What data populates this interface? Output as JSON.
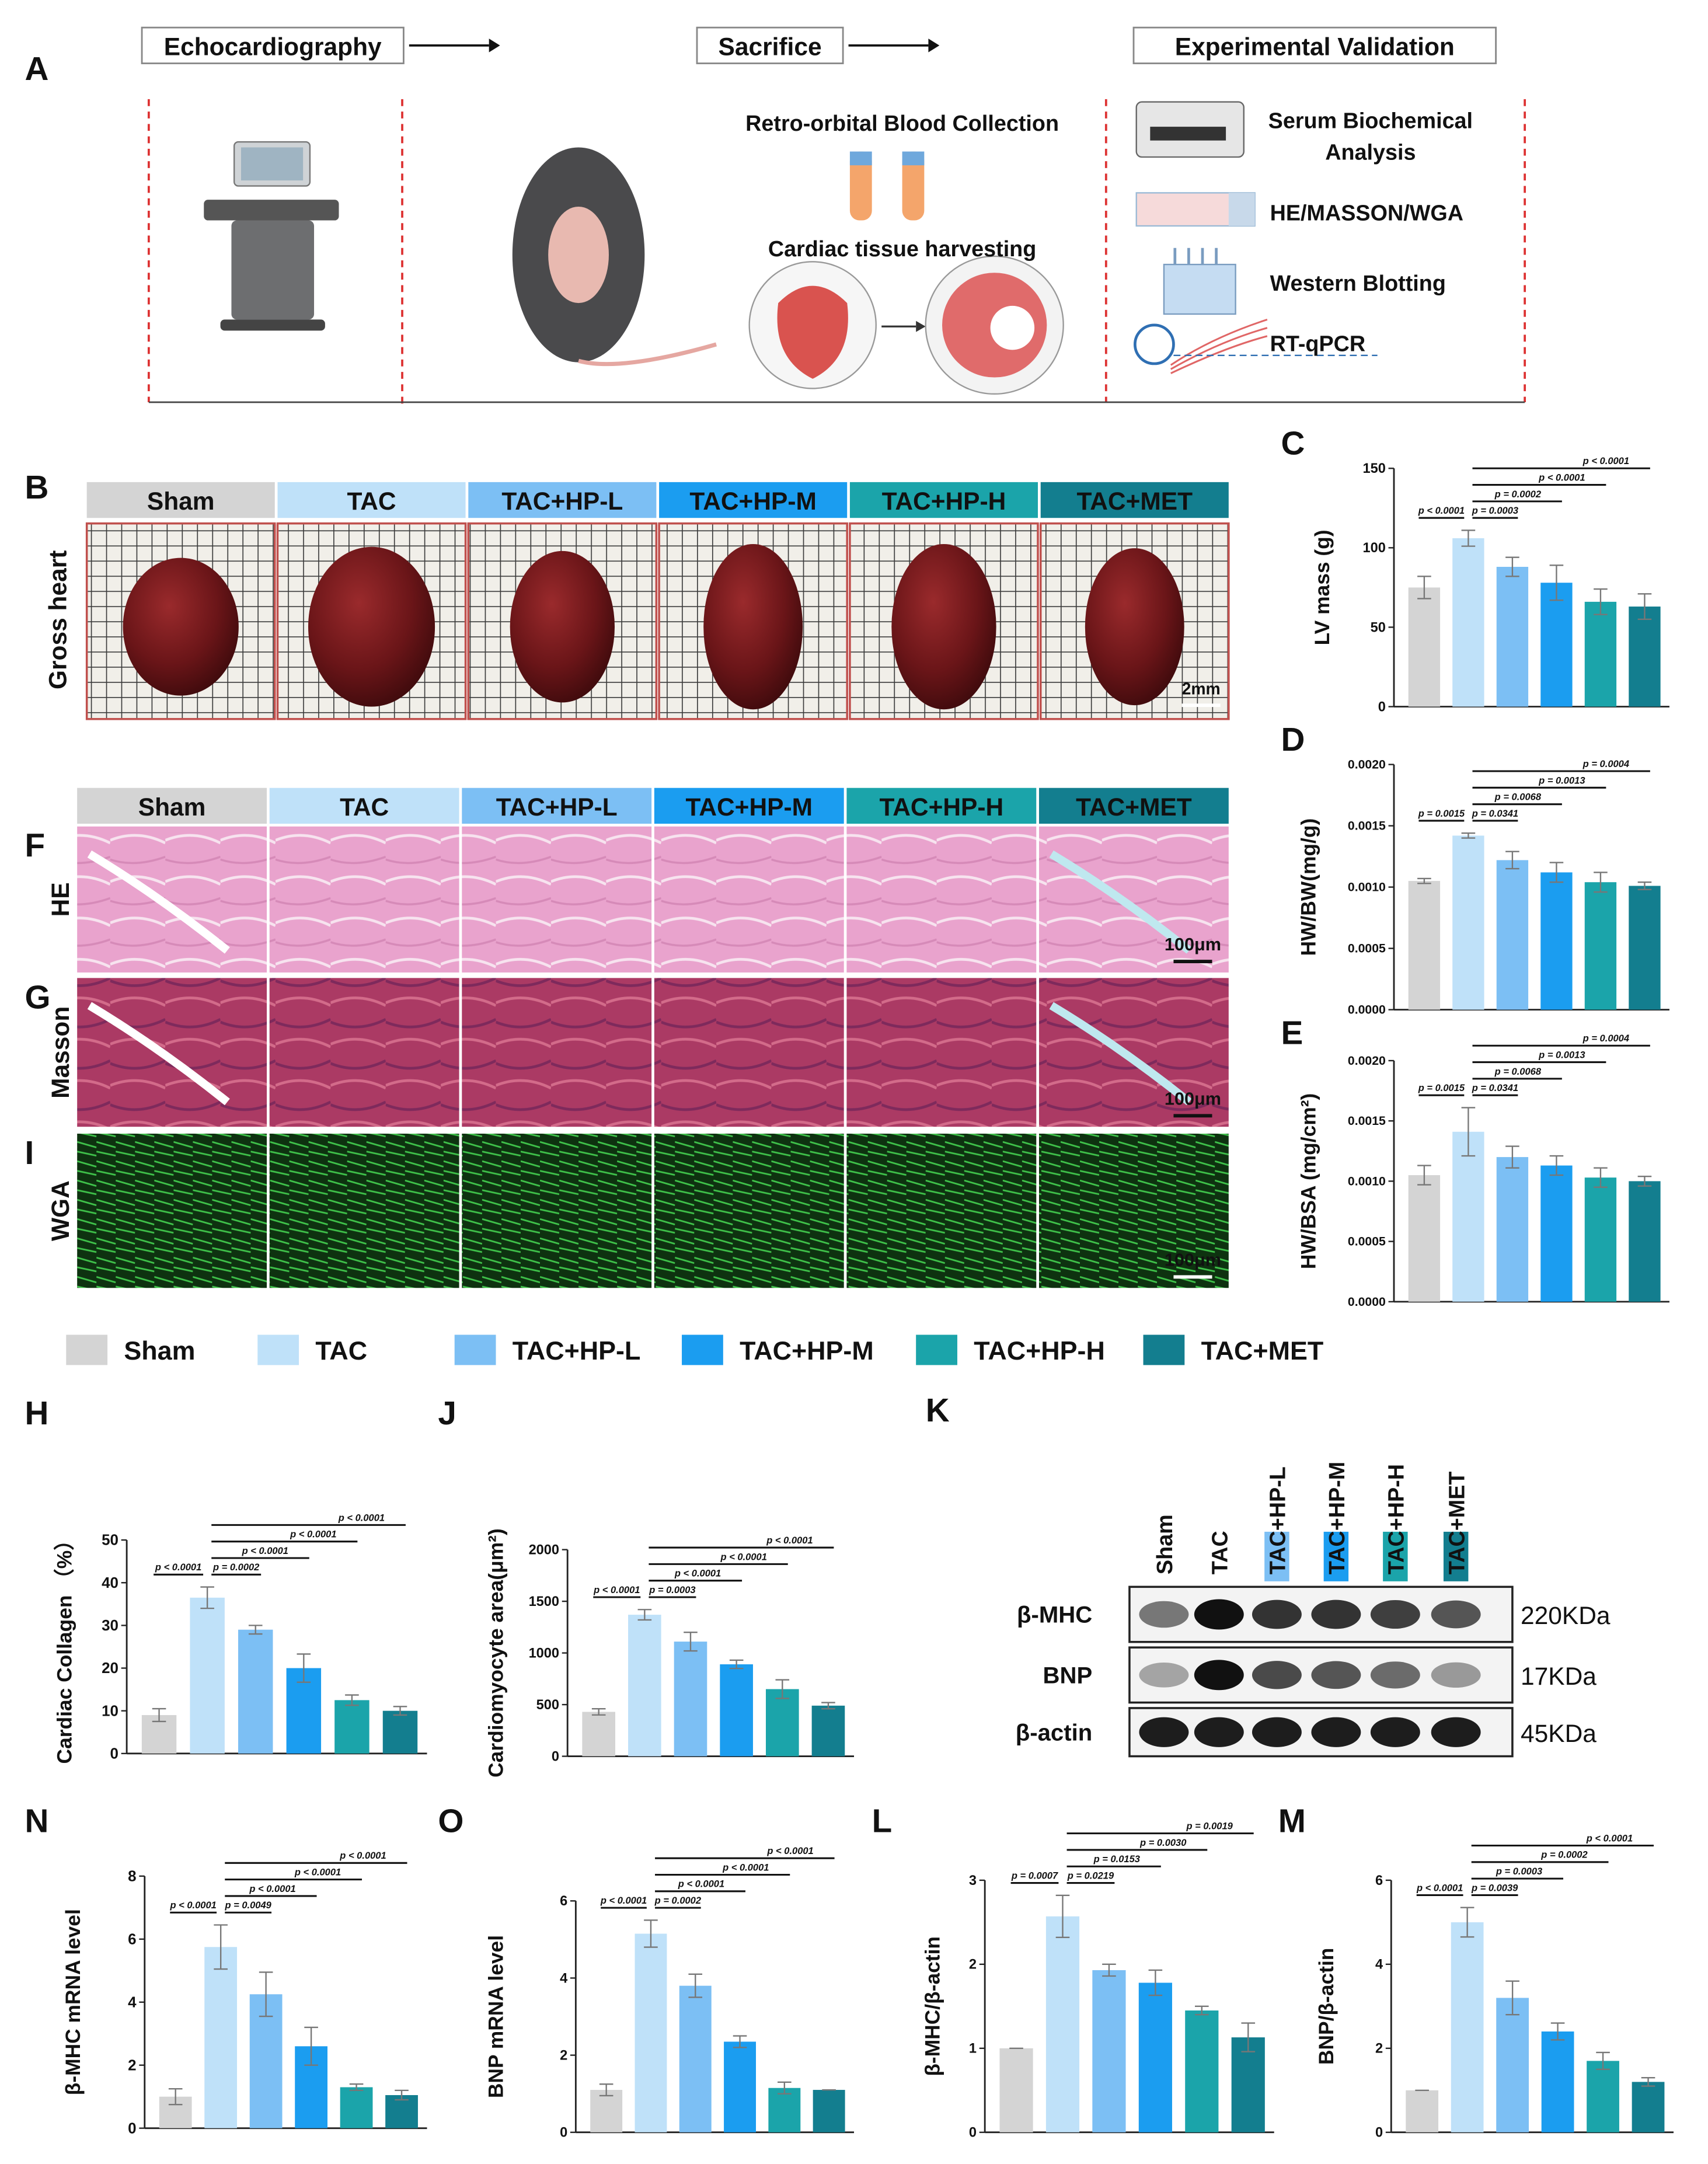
{
  "workflow": {
    "panel": "A",
    "steps": [
      "Echocardiography",
      "Sacrifice",
      "Experimental Validation"
    ],
    "sacrifice_items": [
      "Retro-orbital Blood Collection",
      "Cardiac tissue harvesting"
    ],
    "validation_items": {
      "serum": [
        "Serum Biochemical",
        "Analysis"
      ],
      "others": [
        "HE/MASSON/WGA",
        "Western Blotting",
        "RT-qPCR"
      ]
    }
  },
  "groups": [
    {
      "name": "Sham",
      "color": "#d4d4d4"
    },
    {
      "name": "TAC",
      "color": "#bfe1f9"
    },
    {
      "name": "TAC+HP-L",
      "color": "#7cbff4"
    },
    {
      "name": "TAC+HP-M",
      "color": "#1b9df0"
    },
    {
      "name": "TAC+HP-H",
      "color": "#1ba4aa"
    },
    {
      "name": "TAC+MET",
      "color": "#137e8f"
    }
  ],
  "gross_heart": {
    "panel": "B",
    "label": "Gross heart",
    "scale": "2mm"
  },
  "histology": {
    "panels": [
      "F",
      "G",
      "I"
    ],
    "stains": [
      "HE",
      "Masson",
      "WGA"
    ],
    "scale": "100μm"
  },
  "western_blot": {
    "panel": "K",
    "proteins": [
      "β-MHC",
      "BNP",
      "β-actin"
    ],
    "sizes": [
      "220KDa",
      "17KDa",
      "45KDa"
    ]
  },
  "chart_data": [
    {
      "type": "bar",
      "panel": "C",
      "ylabel": "LV mass (g)",
      "ylim": [
        0,
        150
      ],
      "yticks": [
        0,
        50,
        100,
        150
      ],
      "values": [
        75,
        106,
        88,
        78,
        66,
        63
      ],
      "errors": [
        7,
        5,
        6,
        11,
        8,
        8
      ],
      "pvalues": [
        "p < 0.0001",
        "p = 0.0003",
        "p = 0.0002",
        "p < 0.0001",
        "p < 0.0001"
      ]
    },
    {
      "type": "bar",
      "panel": "D",
      "ylabel": "HW/BW(mg/g)",
      "ylim": [
        0,
        0.002
      ],
      "yticks": [
        {
          "value": 0,
          "label": "0.0000"
        },
        0.0005,
        {
          "value": 0.001,
          "label": "0.0010"
        },
        0.0015,
        {
          "value": 0.002,
          "label": "0.0020"
        }
      ],
      "values": [
        0.00105,
        0.00142,
        0.00122,
        0.00112,
        0.00104,
        0.00101
      ],
      "errors": [
        2e-05,
        2e-05,
        7e-05,
        8e-05,
        8e-05,
        3e-05
      ],
      "pvalues": [
        "p = 0.0015",
        "p = 0.0341",
        "p = 0.0068",
        "p = 0.0013",
        "p = 0.0004"
      ]
    },
    {
      "type": "bar",
      "panel": "E",
      "ylabel": "HW/BSA (mg/cm²)",
      "ylim": [
        0,
        0.002
      ],
      "yticks": [
        {
          "value": 0,
          "label": "0.0000"
        },
        0.0005,
        {
          "value": 0.001,
          "label": "0.0010"
        },
        0.0015,
        {
          "value": 0.002,
          "label": "0.0020"
        }
      ],
      "values": [
        0.00105,
        0.00141,
        0.0012,
        0.00113,
        0.00103,
        0.001
      ],
      "errors": [
        8e-05,
        0.0002,
        9e-05,
        8e-05,
        8e-05,
        4e-05
      ],
      "pvalues": [
        "p = 0.0015",
        "p = 0.0341",
        "p = 0.0068",
        "p = 0.0013",
        "p = 0.0004"
      ]
    },
    {
      "type": "bar",
      "panel": "H",
      "ylabel": "Cardiac Collagen （%）",
      "ylim": [
        0,
        50
      ],
      "yticks": [
        0,
        10,
        20,
        30,
        40,
        50
      ],
      "values": [
        9,
        36.5,
        29,
        20,
        12.5,
        10
      ],
      "errors": [
        1.5,
        2.5,
        1,
        3.3,
        1.2,
        1
      ],
      "pvalues": [
        "p < 0.0001",
        "p = 0.0002",
        "p < 0.0001",
        "p < 0.0001",
        "p < 0.0001"
      ]
    },
    {
      "type": "bar",
      "panel": "J",
      "ylabel": "Cardiomyocyte area(μm²)",
      "ylim": [
        0,
        2000
      ],
      "yticks": [
        0,
        500,
        1000,
        1500,
        2000
      ],
      "values": [
        430,
        1370,
        1110,
        890,
        650,
        490
      ],
      "errors": [
        30,
        50,
        90,
        40,
        90,
        30
      ],
      "pvalues": [
        "p < 0.0001",
        "p = 0.0003",
        "p < 0.0001",
        "p < 0.0001",
        "p < 0.0001"
      ]
    },
    {
      "type": "bar",
      "panel": "N",
      "ylabel": "β-MHC mRNA level",
      "ylim": [
        0,
        8
      ],
      "yticks": [
        0,
        2,
        4,
        6,
        8
      ],
      "values": [
        1,
        5.75,
        4.25,
        2.6,
        1.3,
        1.05
      ],
      "errors": [
        0.25,
        0.7,
        0.7,
        0.6,
        0.1,
        0.15
      ],
      "pvalues": [
        "p < 0.0001",
        "p = 0.0049",
        "p < 0.0001",
        "p < 0.0001",
        "p < 0.0001"
      ]
    },
    {
      "type": "bar",
      "panel": "O",
      "ylabel": "BNP mRNA level",
      "ylim": [
        0,
        6
      ],
      "yticks": [
        0,
        2,
        4,
        6
      ],
      "values": [
        1.1,
        5.15,
        3.8,
        2.35,
        1.15,
        1.1
      ],
      "errors": [
        0.15,
        0.35,
        0.3,
        0.15,
        0.15,
        0
      ],
      "pvalues": [
        "p < 0.0001",
        "p = 0.0002",
        "p < 0.0001",
        "p < 0.0001",
        "p < 0.0001"
      ]
    },
    {
      "type": "bar",
      "panel": "L",
      "ylabel": "β-MHC/β-actin",
      "ylim": [
        0,
        3
      ],
      "yticks": [
        0,
        1,
        2,
        3
      ],
      "values": [
        1,
        2.57,
        1.93,
        1.78,
        1.45,
        1.13
      ],
      "errors": [
        0,
        0.25,
        0.07,
        0.15,
        0.05,
        0.17
      ],
      "pvalues": [
        "p = 0.0007",
        "p = 0.0219",
        "p = 0.0153",
        "p = 0.0030",
        "p = 0.0019"
      ]
    },
    {
      "type": "bar",
      "panel": "M",
      "ylabel": "BNP/β-actin",
      "ylim": [
        0,
        6
      ],
      "yticks": [
        0,
        2,
        4,
        6
      ],
      "values": [
        1,
        5,
        3.2,
        2.4,
        1.7,
        1.2
      ],
      "errors": [
        0,
        0.35,
        0.4,
        0.2,
        0.2,
        0.1
      ],
      "pvalues": [
        "p < 0.0001",
        "p = 0.0039",
        "p = 0.0003",
        "p = 0.0002",
        "p < 0.0001"
      ]
    }
  ]
}
